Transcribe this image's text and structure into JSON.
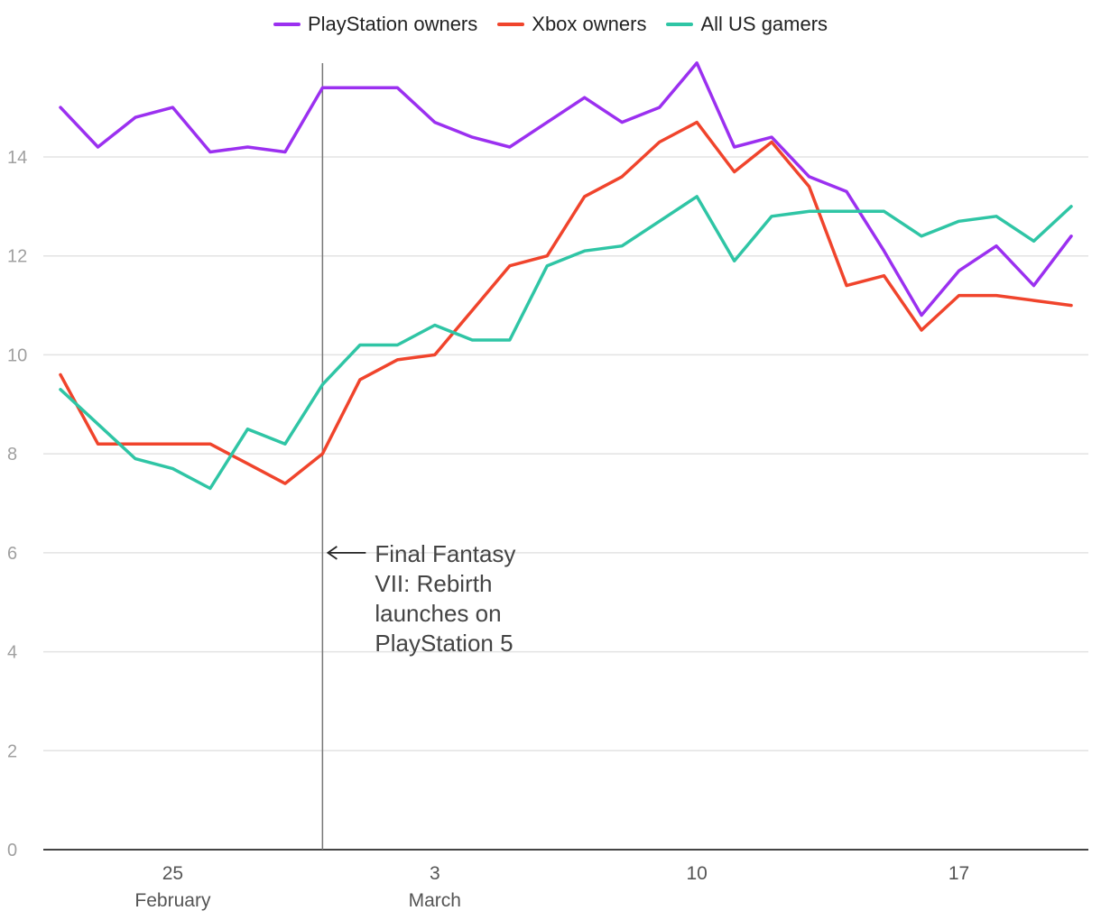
{
  "chart_data": {
    "type": "line",
    "title": "",
    "xlabel": "",
    "ylabel": "",
    "ylim": [
      0,
      16
    ],
    "yticks": [
      0,
      2,
      4,
      6,
      8,
      10,
      12,
      14
    ],
    "grid": true,
    "legend_position": "top-center",
    "x": [
      1,
      2,
      3,
      4,
      5,
      6,
      7,
      8,
      9,
      10,
      11,
      12,
      13,
      14,
      15,
      16,
      17,
      18,
      19,
      20,
      21,
      22,
      23,
      24,
      25,
      26,
      27,
      28
    ],
    "x_ticks": [
      {
        "x": 4,
        "label": "25",
        "sublabel": "February"
      },
      {
        "x": 11,
        "label": "3",
        "sublabel": "March"
      },
      {
        "x": 18,
        "label": "10",
        "sublabel": ""
      },
      {
        "x": 25,
        "label": "17",
        "sublabel": ""
      }
    ],
    "series": [
      {
        "name": "PlayStation owners",
        "color": "#9b30f0",
        "values": [
          15.0,
          14.2,
          14.8,
          15.0,
          14.1,
          14.2,
          14.1,
          15.4,
          15.4,
          15.4,
          14.7,
          14.4,
          14.2,
          14.7,
          15.2,
          14.7,
          15.0,
          15.9,
          14.2,
          14.4,
          13.6,
          13.3,
          12.1,
          10.8,
          11.7,
          12.2,
          11.4,
          12.4
        ]
      },
      {
        "name": "Xbox owners",
        "color": "#f0442c",
        "values": [
          9.6,
          8.2,
          8.2,
          8.2,
          8.2,
          7.8,
          7.4,
          8.0,
          9.5,
          9.9,
          10.0,
          10.9,
          11.8,
          12.0,
          13.2,
          13.6,
          14.3,
          14.7,
          13.7,
          14.3,
          13.4,
          11.4,
          11.6,
          10.5,
          11.2,
          11.2,
          11.1,
          11.0
        ]
      },
      {
        "name": "All US gamers",
        "color": "#2fc5a5",
        "values": [
          9.3,
          8.6,
          7.9,
          7.7,
          7.3,
          8.5,
          8.2,
          9.4,
          10.2,
          10.2,
          10.6,
          10.3,
          10.3,
          11.8,
          12.1,
          12.2,
          12.7,
          13.2,
          11.9,
          12.8,
          12.9,
          12.9,
          12.9,
          12.4,
          12.7,
          12.8,
          12.3,
          13.0
        ]
      }
    ],
    "annotation": {
      "x": 8,
      "arrow_y": 6,
      "lines": [
        "Final Fantasy",
        "VII: Rebirth",
        "launches on",
        "PlayStation 5"
      ]
    }
  }
}
